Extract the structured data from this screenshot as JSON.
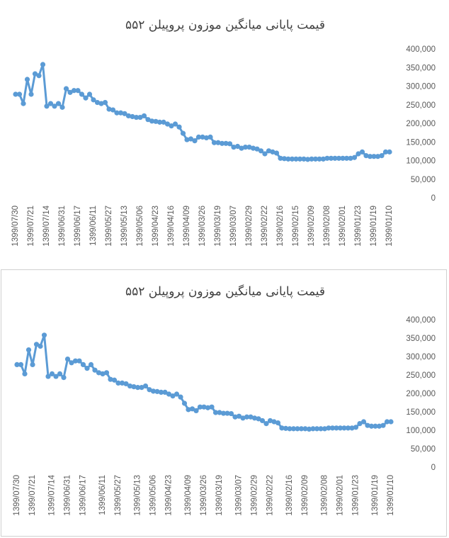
{
  "chart_data": [
    {
      "type": "line",
      "title": "قیمت پایانی میانگین موزون پروپیلن  ۵۵۲",
      "categories": [
        "1399/07/30",
        null,
        null,
        null,
        "1399/07/21",
        null,
        null,
        null,
        "1399/07/14",
        null,
        null,
        null,
        "1399/06/31",
        null,
        null,
        null,
        "1399/06/17",
        null,
        null,
        null,
        "1399/06/11",
        null,
        null,
        null,
        "1399/05/27",
        null,
        null,
        null,
        "1399/05/13",
        null,
        null,
        null,
        "1399/05/06",
        null,
        null,
        null,
        "1399/04/23",
        null,
        null,
        null,
        "1399/04/16",
        null,
        null,
        null,
        "1399/04/09",
        null,
        null,
        null,
        "1399/03/26",
        null,
        null,
        null,
        "1399/03/19",
        null,
        null,
        null,
        "1399/03/07",
        null,
        null,
        null,
        "1399/02/29",
        null,
        null,
        null,
        "1399/02/22",
        null,
        null,
        null,
        "1399/02/16",
        null,
        null,
        null,
        "1399/02/15",
        null,
        null,
        null,
        "1399/02/09",
        null,
        null,
        null,
        "1399/02/08",
        null,
        null,
        null,
        "1399/02/01",
        null,
        null,
        null,
        "1399/01/23",
        null,
        null,
        null,
        "1399/01/19",
        null,
        null,
        null,
        "1399/01/10"
      ],
      "series": [
        {
          "color": "#5b9bd5",
          "values": [
            280000,
            280000,
            255000,
            320000,
            280000,
            335000,
            330000,
            360000,
            248000,
            255000,
            248000,
            255000,
            245000,
            295000,
            285000,
            290000,
            290000,
            280000,
            270000,
            280000,
            265000,
            258000,
            255000,
            258000,
            240000,
            238000,
            230000,
            230000,
            228000,
            222000,
            220000,
            218000,
            218000,
            222000,
            212000,
            208000,
            207000,
            205000,
            205000,
            200000,
            195000,
            200000,
            192000,
            175000,
            158000,
            160000,
            155000,
            165000,
            165000,
            163000,
            165000,
            150000,
            150000,
            148000,
            148000,
            147000,
            138000,
            140000,
            135000,
            138000,
            138000,
            135000,
            133000,
            128000,
            120000,
            128000,
            125000,
            122000,
            108000,
            107000,
            106000,
            106000,
            106000,
            106000,
            106000,
            105000,
            106000,
            106000,
            106000,
            106000,
            108000,
            108000,
            108000,
            108000,
            108000,
            108000,
            108000,
            110000,
            120000,
            125000,
            115000,
            113000,
            113000,
            113000,
            115000,
            125000,
            125000
          ]
        }
      ],
      "ylim": [
        0,
        400000
      ],
      "yticks": [
        0,
        {
          "value": 50000,
          "label": "50,000"
        },
        {
          "value": 100000,
          "label": "100,000"
        },
        {
          "value": 150000,
          "label": "150,000"
        },
        {
          "value": 200000,
          "label": "200,000"
        },
        {
          "value": 250000,
          "label": "250,000"
        },
        {
          "value": 300000,
          "label": "300,000"
        },
        {
          "value": 350000,
          "label": "350,000"
        },
        {
          "value": 400000,
          "label": "400,000"
        }
      ],
      "grid": false
    },
    {
      "type": "line",
      "title": "قیمت پایانی میانگین موزون پروپیلن  ۵۵۲",
      "categories": [
        "1399/07/30",
        null,
        null,
        null,
        "1399/07/21",
        null,
        null,
        null,
        null,
        "1399/07/14",
        null,
        null,
        null,
        "1399/06/31",
        null,
        null,
        null,
        "1399/06/17",
        null,
        null,
        null,
        null,
        "1399/06/11",
        null,
        null,
        null,
        "1399/05/27",
        null,
        null,
        null,
        null,
        "1399/05/13",
        null,
        null,
        null,
        "1399/05/06",
        null,
        null,
        null,
        "1399/04/23",
        null,
        null,
        null,
        null,
        "1399/04/09",
        null,
        null,
        null,
        "1399/03/26",
        null,
        null,
        null,
        "1399/03/19",
        null,
        null,
        null,
        null,
        "1399/03/07",
        null,
        null,
        null,
        "1399/02/29",
        null,
        null,
        null,
        "1399/02/22",
        null,
        null,
        null,
        null,
        "1399/02/16",
        null,
        null,
        null,
        "1399/02/09",
        null,
        null,
        null,
        null,
        "1399/02/08",
        null,
        null,
        null,
        "1399/02/01",
        null,
        null,
        null,
        "1399/01/23",
        null,
        null,
        null,
        null,
        "1399/01/19",
        null,
        null,
        null,
        "1399/01/10"
      ],
      "series": [
        {
          "color": "#5b9bd5",
          "values": [
            280000,
            280000,
            255000,
            320000,
            280000,
            335000,
            330000,
            360000,
            248000,
            255000,
            248000,
            255000,
            245000,
            295000,
            285000,
            290000,
            290000,
            280000,
            270000,
            280000,
            265000,
            258000,
            255000,
            258000,
            240000,
            238000,
            230000,
            230000,
            228000,
            222000,
            220000,
            218000,
            218000,
            222000,
            212000,
            208000,
            207000,
            205000,
            205000,
            200000,
            195000,
            200000,
            192000,
            175000,
            158000,
            160000,
            155000,
            165000,
            165000,
            163000,
            165000,
            150000,
            150000,
            148000,
            148000,
            147000,
            138000,
            140000,
            135000,
            138000,
            138000,
            135000,
            133000,
            128000,
            120000,
            128000,
            125000,
            122000,
            108000,
            107000,
            106000,
            106000,
            106000,
            106000,
            106000,
            105000,
            106000,
            106000,
            106000,
            106000,
            108000,
            108000,
            108000,
            108000,
            108000,
            108000,
            108000,
            110000,
            120000,
            125000,
            115000,
            113000,
            113000,
            113000,
            115000,
            125000,
            125000
          ]
        }
      ],
      "ylim": [
        0,
        400000
      ],
      "yticks": [
        0,
        {
          "value": 50000,
          "label": "50,000"
        },
        {
          "value": 100000,
          "label": "100,000"
        },
        {
          "value": 150000,
          "label": "150,000"
        },
        {
          "value": 200000,
          "label": "200,000"
        },
        {
          "value": 250000,
          "label": "250,000"
        },
        {
          "value": 300000,
          "label": "300,000"
        },
        {
          "value": 350000,
          "label": "350,000"
        },
        {
          "value": 400000,
          "label": "400,000"
        }
      ],
      "grid": false
    }
  ]
}
